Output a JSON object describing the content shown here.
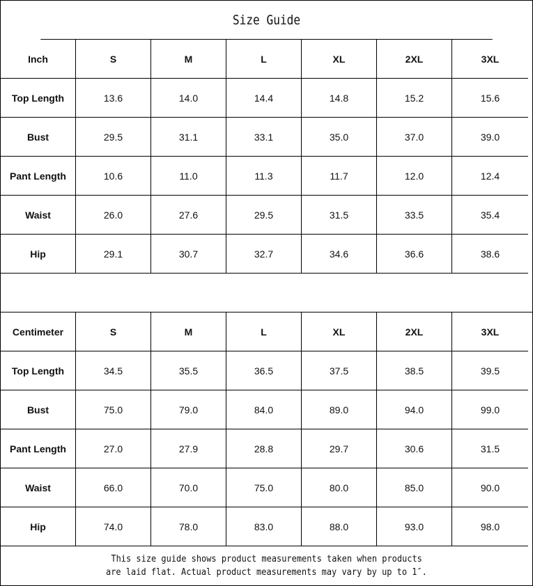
{
  "title": "Size Guide",
  "sizes": [
    "S",
    "M",
    "L",
    "XL",
    "2XL",
    "3XL"
  ],
  "inch": {
    "unit_label": "Inch",
    "rows": [
      {
        "label": "Top Length",
        "values": [
          "13.6",
          "14.0",
          "14.4",
          "14.8",
          "15.2",
          "15.6"
        ]
      },
      {
        "label": "Bust",
        "values": [
          "29.5",
          "31.1",
          "33.1",
          "35.0",
          "37.0",
          "39.0"
        ]
      },
      {
        "label": "Pant Length",
        "values": [
          "10.6",
          "11.0",
          "11.3",
          "11.7",
          "12.0",
          "12.4"
        ]
      },
      {
        "label": "Waist",
        "values": [
          "26.0",
          "27.6",
          "29.5",
          "31.5",
          "33.5",
          "35.4"
        ]
      },
      {
        "label": "Hip",
        "values": [
          "29.1",
          "30.7",
          "32.7",
          "34.6",
          "36.6",
          "38.6"
        ]
      }
    ]
  },
  "centimeter": {
    "unit_label": "Centimeter",
    "rows": [
      {
        "label": "Top Length",
        "values": [
          "34.5",
          "35.5",
          "36.5",
          "37.5",
          "38.5",
          "39.5"
        ]
      },
      {
        "label": "Bust",
        "values": [
          "75.0",
          "79.0",
          "84.0",
          "89.0",
          "94.0",
          "99.0"
        ]
      },
      {
        "label": "Pant Length",
        "values": [
          "27.0",
          "27.9",
          "28.8",
          "29.7",
          "30.6",
          "31.5"
        ]
      },
      {
        "label": "Waist",
        "values": [
          "66.0",
          "70.0",
          "75.0",
          "80.0",
          "85.0",
          "90.0"
        ]
      },
      {
        "label": "Hip",
        "values": [
          "74.0",
          "78.0",
          "83.0",
          "88.0",
          "93.0",
          "98.0"
        ]
      }
    ]
  },
  "footer": {
    "line1": "This size guide shows product measurements taken when products",
    "line2": "are laid flat. Actual product measurements may vary by up to 1″."
  }
}
